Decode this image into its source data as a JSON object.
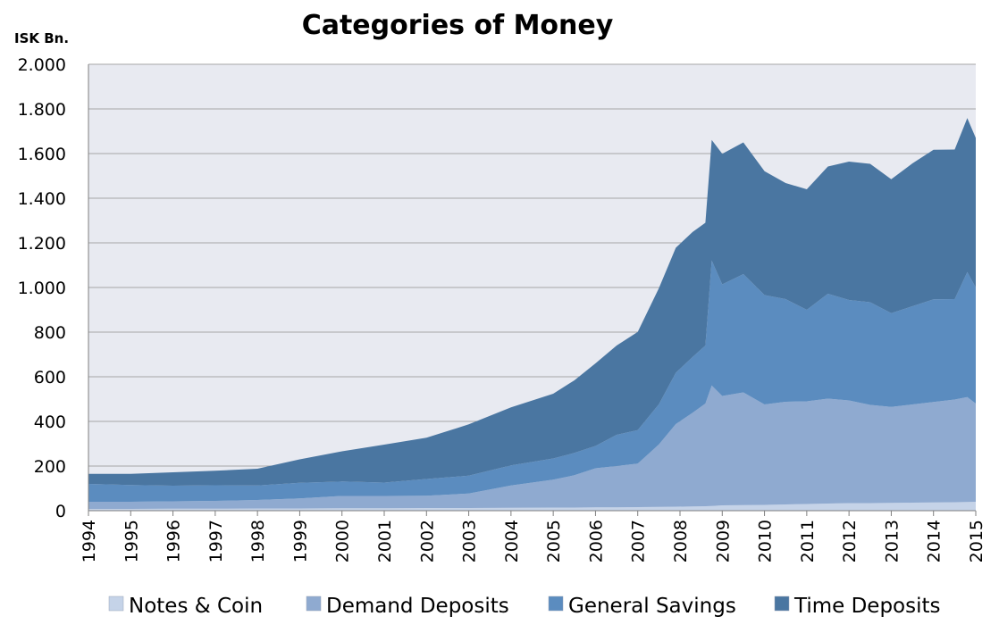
{
  "chart_data": {
    "type": "area",
    "stacked": true,
    "title": "Categories of Money",
    "ylabel": "ISK Bn.",
    "xlabel": "",
    "ylim": [
      0,
      2000
    ],
    "xlim": [
      1994,
      2015
    ],
    "grid": true,
    "legend_position": "bottom",
    "y_tick_labels": [
      "0",
      "200",
      "400",
      "600",
      "800",
      "1.000",
      "1.200",
      "1.400",
      "1.600",
      "1.800",
      "2.000"
    ],
    "y_tick_values": [
      0,
      200,
      400,
      600,
      800,
      1000,
      1200,
      1400,
      1600,
      1800,
      2000
    ],
    "x_tick_labels": [
      "1994",
      "1995",
      "1996",
      "1997",
      "1998",
      "1999",
      "2000",
      "2001",
      "2002",
      "2003",
      "2004",
      "2005",
      "2006",
      "2007",
      "2008",
      "2009",
      "2010",
      "2011",
      "2012",
      "2013",
      "2014",
      "2015"
    ],
    "x": [
      1994.0,
      1995.0,
      1996.0,
      1997.0,
      1998.0,
      1999.0,
      2000.0,
      2001.0,
      2002.0,
      2003.0,
      2004.0,
      2005.0,
      2005.5,
      2006.0,
      2006.5,
      2007.0,
      2007.5,
      2007.9,
      2008.3,
      2008.6,
      2008.75,
      2009.0,
      2009.5,
      2010.0,
      2010.5,
      2011.0,
      2011.5,
      2012.0,
      2012.5,
      2013.0,
      2013.5,
      2014.0,
      2014.5,
      2014.8,
      2015.0
    ],
    "series": [
      {
        "name": "Notes & Coin",
        "color": "#c5d3e8",
        "values": [
          8,
          8,
          9,
          9,
          10,
          10,
          11,
          11,
          12,
          12,
          13,
          14,
          14,
          15,
          15,
          16,
          17,
          18,
          19,
          20,
          21,
          24,
          25,
          26,
          28,
          30,
          32,
          34,
          34,
          35,
          36,
          37,
          38,
          39,
          40
        ]
      },
      {
        "name": "Demand Deposits",
        "color": "#8faad0",
        "values": [
          32,
          32,
          33,
          35,
          38,
          45,
          55,
          55,
          55,
          65,
          100,
          125,
          145,
          175,
          185,
          195,
          280,
          370,
          420,
          460,
          540,
          490,
          505,
          450,
          460,
          460,
          470,
          460,
          440,
          430,
          440,
          450,
          460,
          470,
          440
        ]
      },
      {
        "name": "General Savings",
        "color": "#5b8cbf",
        "values": [
          80,
          75,
          70,
          70,
          65,
          70,
          65,
          60,
          75,
          80,
          90,
          95,
          100,
          100,
          140,
          150,
          180,
          230,
          250,
          260,
          560,
          500,
          530,
          490,
          460,
          410,
          470,
          450,
          460,
          420,
          440,
          460,
          450,
          560,
          520
        ]
      },
      {
        "name": "Time Deposits",
        "color": "#4a76a1",
        "values": [
          45,
          50,
          60,
          65,
          75,
          105,
          135,
          170,
          185,
          230,
          260,
          290,
          325,
          370,
          400,
          440,
          520,
          560,
          560,
          550,
          540,
          585,
          590,
          555,
          520,
          540,
          570,
          620,
          620,
          600,
          640,
          670,
          670,
          690,
          670
        ]
      }
    ]
  }
}
